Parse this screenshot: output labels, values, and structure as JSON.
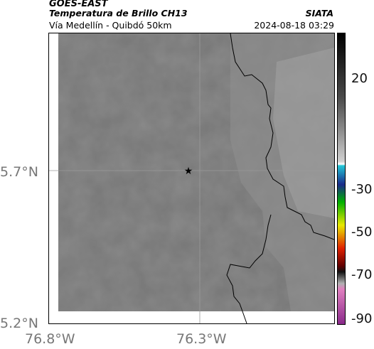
{
  "header": {
    "satellite": "GOES-EAST",
    "product": "Temperatura de Brillo CH13",
    "agency": "SIATA",
    "region": "Vía Medellín - Quibdó 50km",
    "datetime": "2024-08-18 03:29"
  },
  "map": {
    "lat_ticks": [
      "5.7°N",
      "5.2°N"
    ],
    "lon_ticks": [
      "76.8°W",
      "76.3°W"
    ],
    "marker": "star-marker",
    "colors": {
      "cloud_gray": "#7a7a7a",
      "border_line": "#000000"
    }
  },
  "colorbar": {
    "ticks": [
      "20",
      "-30",
      "-50",
      "-70",
      "-90"
    ],
    "stops": [
      "#000000",
      "#4a4a4a",
      "#a0a0a0",
      "#ffffff",
      "#22c6d6",
      "#1a2a8a",
      "#00b000",
      "#e8e800",
      "#e02000",
      "#600000",
      "#b0b0b0",
      "#9a2a9a"
    ]
  }
}
